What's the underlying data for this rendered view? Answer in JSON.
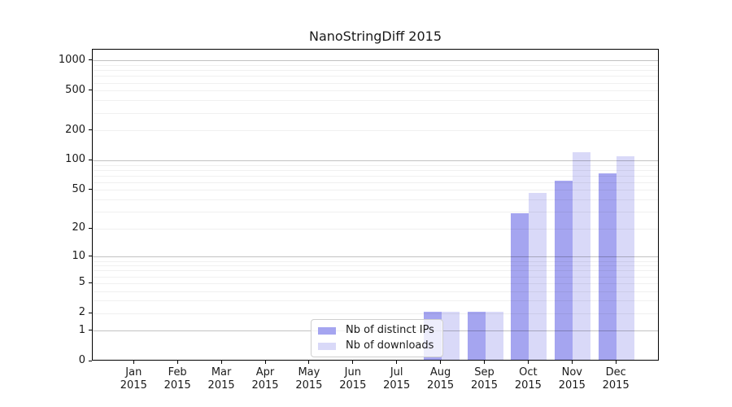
{
  "figure": {
    "background": "#ffffff"
  },
  "chart_data": {
    "type": "bar",
    "title": "NanoStringDiff 2015",
    "categories": [
      "Jan",
      "Feb",
      "Mar",
      "Apr",
      "May",
      "Jun",
      "Jul",
      "Aug",
      "Sep",
      "Oct",
      "Nov",
      "Dec"
    ],
    "year": "2015",
    "series": [
      {
        "name": "Nb of distinct IPs",
        "color": "#a5a5f0",
        "values": [
          0,
          0,
          0,
          0,
          0,
          0,
          0,
          2,
          2,
          28,
          60,
          72
        ]
      },
      {
        "name": "Nb of downloads",
        "color": "#d9d9f8",
        "values": [
          0,
          0,
          0,
          0,
          0,
          0,
          0,
          2,
          2,
          45,
          118,
          107
        ]
      }
    ],
    "xlabel": "",
    "ylabel": "",
    "y_axis": {
      "scale": "log10(value+1)",
      "ticks": [
        0,
        1,
        2,
        5,
        10,
        20,
        50,
        100,
        200,
        500,
        1000
      ],
      "major_gridlines": [
        1,
        10,
        100,
        1000
      ],
      "minor_gridlines": [
        2,
        3,
        4,
        5,
        6,
        7,
        8,
        9,
        20,
        30,
        40,
        50,
        60,
        70,
        80,
        90,
        200,
        300,
        400,
        500,
        600,
        700,
        800,
        900
      ],
      "ylim": [
        0,
        1300
      ]
    },
    "grid": true,
    "legend": {
      "position": "lower center"
    },
    "colors": {
      "axis": "#000000",
      "text": "#1a1a1a",
      "grid_major": "#c2c2c2",
      "grid_minor": "#efefef"
    }
  }
}
